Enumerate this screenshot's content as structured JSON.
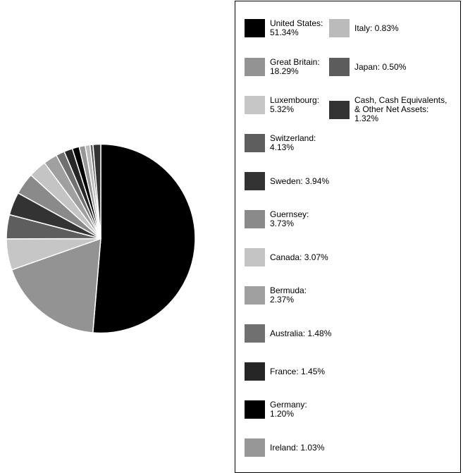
{
  "chart_data": {
    "type": "pie",
    "title": "",
    "slices": [
      {
        "label": "United States",
        "value": 51.34,
        "legend_text": "United States:\n51.34%",
        "color": "#000000"
      },
      {
        "label": "Great Britain",
        "value": 18.29,
        "legend_text": "Great Britain:\n18.29%",
        "color": "#939393"
      },
      {
        "label": "Luxembourg",
        "value": 5.32,
        "legend_text": "Luxembourg:\n5.32%",
        "color": "#c6c6c6"
      },
      {
        "label": "Switzerland",
        "value": 4.13,
        "legend_text": "Switzerland:\n4.13%",
        "color": "#5e5e5e"
      },
      {
        "label": "Sweden",
        "value": 3.94,
        "legend_text": "Sweden: 3.94%",
        "color": "#333333"
      },
      {
        "label": "Guernsey",
        "value": 3.73,
        "legend_text": "Guernsey: 3.73%",
        "color": "#8a8a8a"
      },
      {
        "label": "Canada",
        "value": 3.07,
        "legend_text": "Canada: 3.07%",
        "color": "#c4c4c4"
      },
      {
        "label": "Bermuda",
        "value": 2.37,
        "legend_text": "Bermuda: 2.37%",
        "color": "#a0a0a0"
      },
      {
        "label": "Australia",
        "value": 1.48,
        "legend_text": "Australia: 1.48%",
        "color": "#707070"
      },
      {
        "label": "France",
        "value": 1.45,
        "legend_text": "France: 1.45%",
        "color": "#262626"
      },
      {
        "label": "Germany",
        "value": 1.2,
        "legend_text": "Germany: 1.20%",
        "color": "#000000"
      },
      {
        "label": "Ireland",
        "value": 1.03,
        "legend_text": "Ireland: 1.03%",
        "color": "#979797"
      },
      {
        "label": "Italy",
        "value": 0.83,
        "legend_text": "Italy: 0.83%",
        "color": "#bbbbbb"
      },
      {
        "label": "Japan",
        "value": 0.5,
        "legend_text": "Japan: 0.50%",
        "color": "#5c5c5c"
      },
      {
        "label": "Cash, Cash Equivalents, & Other Net Assets",
        "value": 1.32,
        "legend_text": "Cash, Cash Equivalents,\n& Other Net Assets:\n1.32%",
        "color": "#333333"
      }
    ],
    "legend_position": "right"
  }
}
